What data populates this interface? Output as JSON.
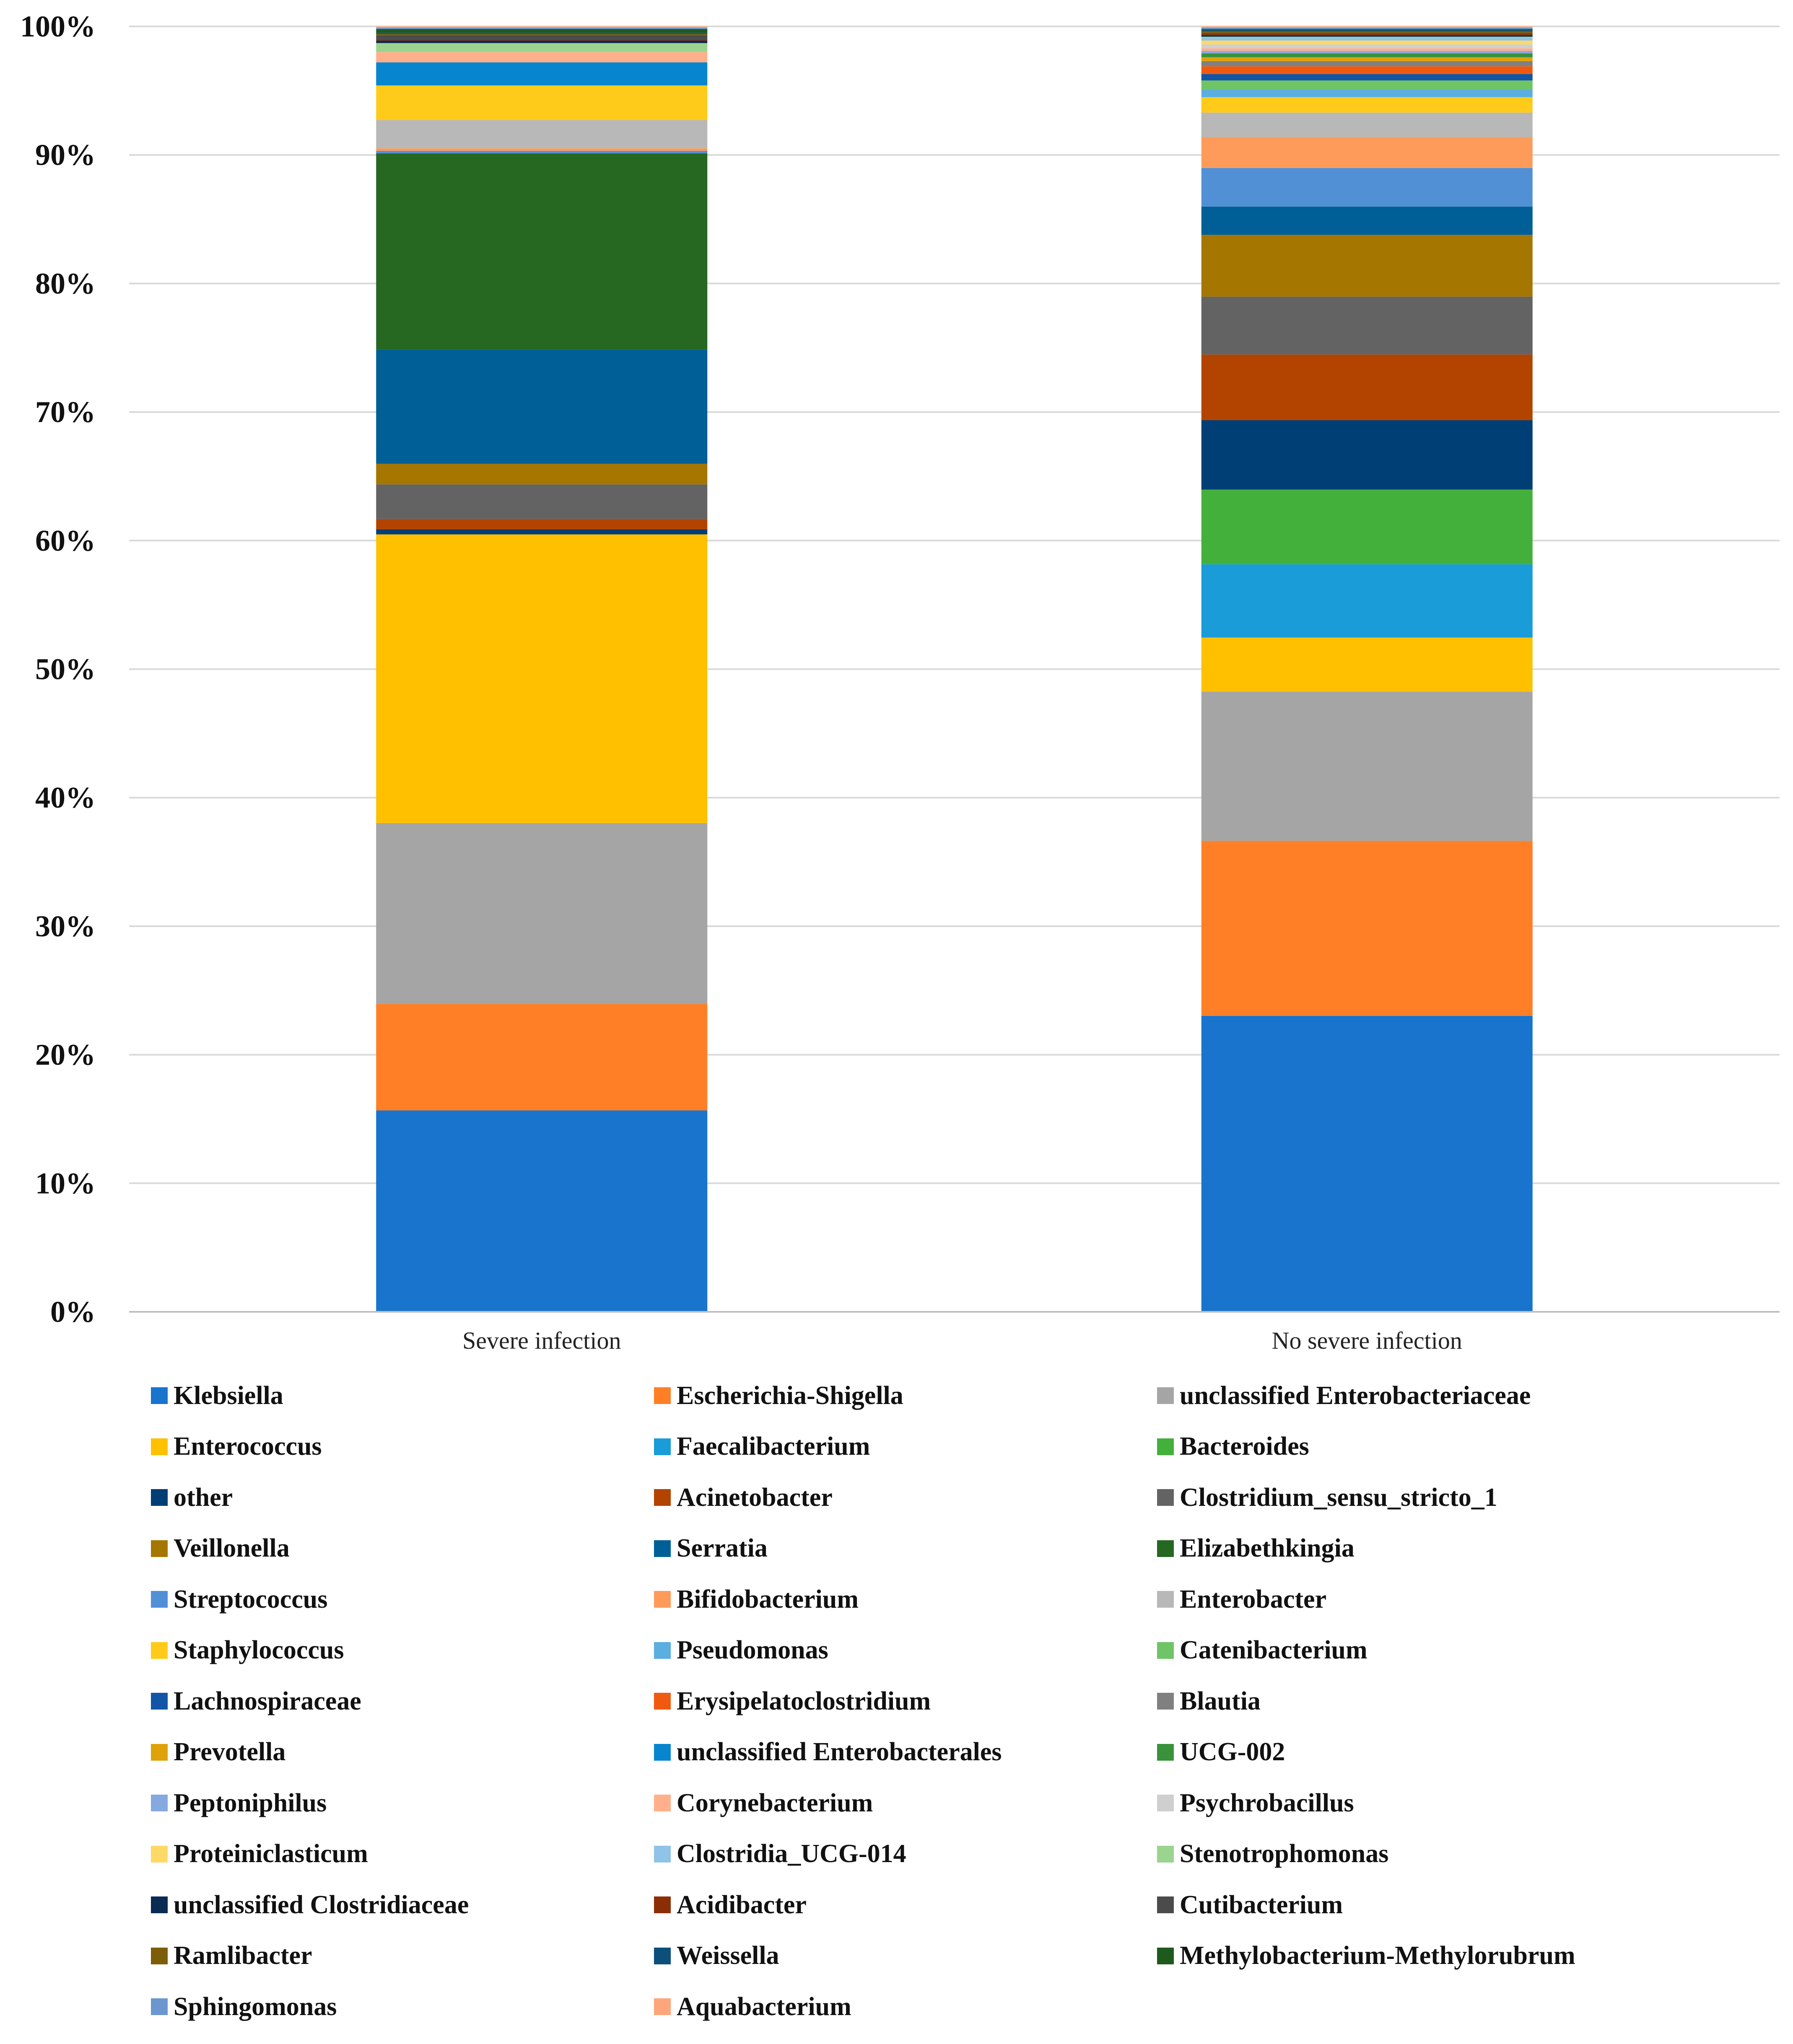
{
  "chart_data": {
    "type": "bar",
    "stacked": true,
    "percent": true,
    "title": "",
    "xlabel": "",
    "ylabel": "",
    "ylim": [
      0,
      100
    ],
    "yticks": [
      "0%",
      "10%",
      "20%",
      "30%",
      "40%",
      "50%",
      "60%",
      "70%",
      "80%",
      "90%",
      "100%"
    ],
    "grid": true,
    "legend_position": "bottom",
    "categories": [
      "Severe infection",
      "No severe infection"
    ],
    "series": [
      {
        "name": "Klebsiella",
        "color": "#1874CD",
        "values": [
          15.7,
          23.0
        ]
      },
      {
        "name": "Escherichia-Shigella",
        "color": "#FF7F27",
        "values": [
          8.3,
          13.6
        ]
      },
      {
        "name": "unclassified Enterobacteriaceae",
        "color": "#A5A5A5",
        "values": [
          14.1,
          11.6
        ]
      },
      {
        "name": "Enterococcus",
        "color": "#FFC000",
        "values": [
          22.5,
          4.2
        ]
      },
      {
        "name": "Faecalibacterium",
        "color": "#1A9CD8",
        "values": [
          0.0,
          5.7
        ]
      },
      {
        "name": "Bacteroides",
        "color": "#43B03C",
        "values": [
          0.0,
          5.8
        ]
      },
      {
        "name": "other",
        "color": "#003F75",
        "values": [
          0.4,
          5.4
        ]
      },
      {
        "name": "Acinetobacter",
        "color": "#B34400",
        "values": [
          0.8,
          5.1
        ]
      },
      {
        "name": "Clostridium_sensu_stricto_1",
        "color": "#636363",
        "values": [
          2.7,
          4.5
        ]
      },
      {
        "name": "Veillonella",
        "color": "#A57600",
        "values": [
          1.6,
          4.8
        ]
      },
      {
        "name": "Serratia",
        "color": "#005F96",
        "values": [
          8.9,
          2.2
        ]
      },
      {
        "name": "Elizabethkingia",
        "color": "#266722",
        "values": [
          15.3,
          0.0
        ]
      },
      {
        "name": "Streptococcus",
        "color": "#5290D6",
        "values": [
          0.2,
          3.0
        ]
      },
      {
        "name": "Bifidobacterium",
        "color": "#FF9B5A",
        "values": [
          0.2,
          2.4
        ]
      },
      {
        "name": "Enterobacter",
        "color": "#B8B8B8",
        "values": [
          2.2,
          1.9
        ]
      },
      {
        "name": "Staphylococcus",
        "color": "#FFCB1A",
        "values": [
          2.7,
          1.2
        ]
      },
      {
        "name": "Pseudomonas",
        "color": "#5BAEE0",
        "values": [
          0.0,
          0.6
        ]
      },
      {
        "name": "Catenibacterium",
        "color": "#6FC466",
        "values": [
          0.0,
          0.7
        ]
      },
      {
        "name": "Lachnospiraceae",
        "color": "#1255A6",
        "values": [
          0.0,
          0.5
        ]
      },
      {
        "name": "Erysipelatoclostridium",
        "color": "#F05A10",
        "values": [
          0.0,
          0.6
        ]
      },
      {
        "name": "Blautia",
        "color": "#808080",
        "values": [
          0.0,
          0.4
        ]
      },
      {
        "name": "Prevotella",
        "color": "#DFA20A",
        "values": [
          0.0,
          0.3
        ]
      },
      {
        "name": "unclassified Enterobacterales",
        "color": "#0786CF",
        "values": [
          1.8,
          0.0
        ]
      },
      {
        "name": "UCG-002",
        "color": "#3A923A",
        "values": [
          0.0,
          0.3
        ]
      },
      {
        "name": "Peptoniphilus",
        "color": "#86A9E0",
        "values": [
          0.0,
          0.2
        ]
      },
      {
        "name": "Corynebacterium",
        "color": "#FFB08A",
        "values": [
          0.8,
          0.2
        ]
      },
      {
        "name": "Psychrobacillus",
        "color": "#CFCFCF",
        "values": [
          0.0,
          0.3
        ]
      },
      {
        "name": "Proteiniclasticum",
        "color": "#FFD966",
        "values": [
          0.0,
          0.3
        ]
      },
      {
        "name": "Clostridia_UCG-014",
        "color": "#8FC3E8",
        "values": [
          0.0,
          0.2
        ]
      },
      {
        "name": "Stenotrophomonas",
        "color": "#9AD48E",
        "values": [
          0.7,
          0.1
        ]
      },
      {
        "name": "unclassified Clostridiaceae",
        "color": "#0A2B52",
        "values": [
          0.2,
          0.1
        ]
      },
      {
        "name": "Acidibacter",
        "color": "#8B2E05",
        "values": [
          0.1,
          0.1
        ]
      },
      {
        "name": "Cutibacterium",
        "color": "#4B4B4B",
        "values": [
          0.3,
          0.1
        ]
      },
      {
        "name": "Ramlibacter",
        "color": "#7E5D08",
        "values": [
          0.1,
          0.1
        ]
      },
      {
        "name": "Weissella",
        "color": "#0C4F7A",
        "values": [
          0.1,
          0.1
        ]
      },
      {
        "name": "Methylobacterium-Methylorubrum",
        "color": "#1E5A1E",
        "values": [
          0.3,
          0.1
        ]
      },
      {
        "name": "Sphingomonas",
        "color": "#6C96D0",
        "values": [
          0.1,
          0.1
        ]
      },
      {
        "name": "Aquabacterium",
        "color": "#FFA57A",
        "values": [
          0.1,
          0.1
        ]
      }
    ]
  }
}
